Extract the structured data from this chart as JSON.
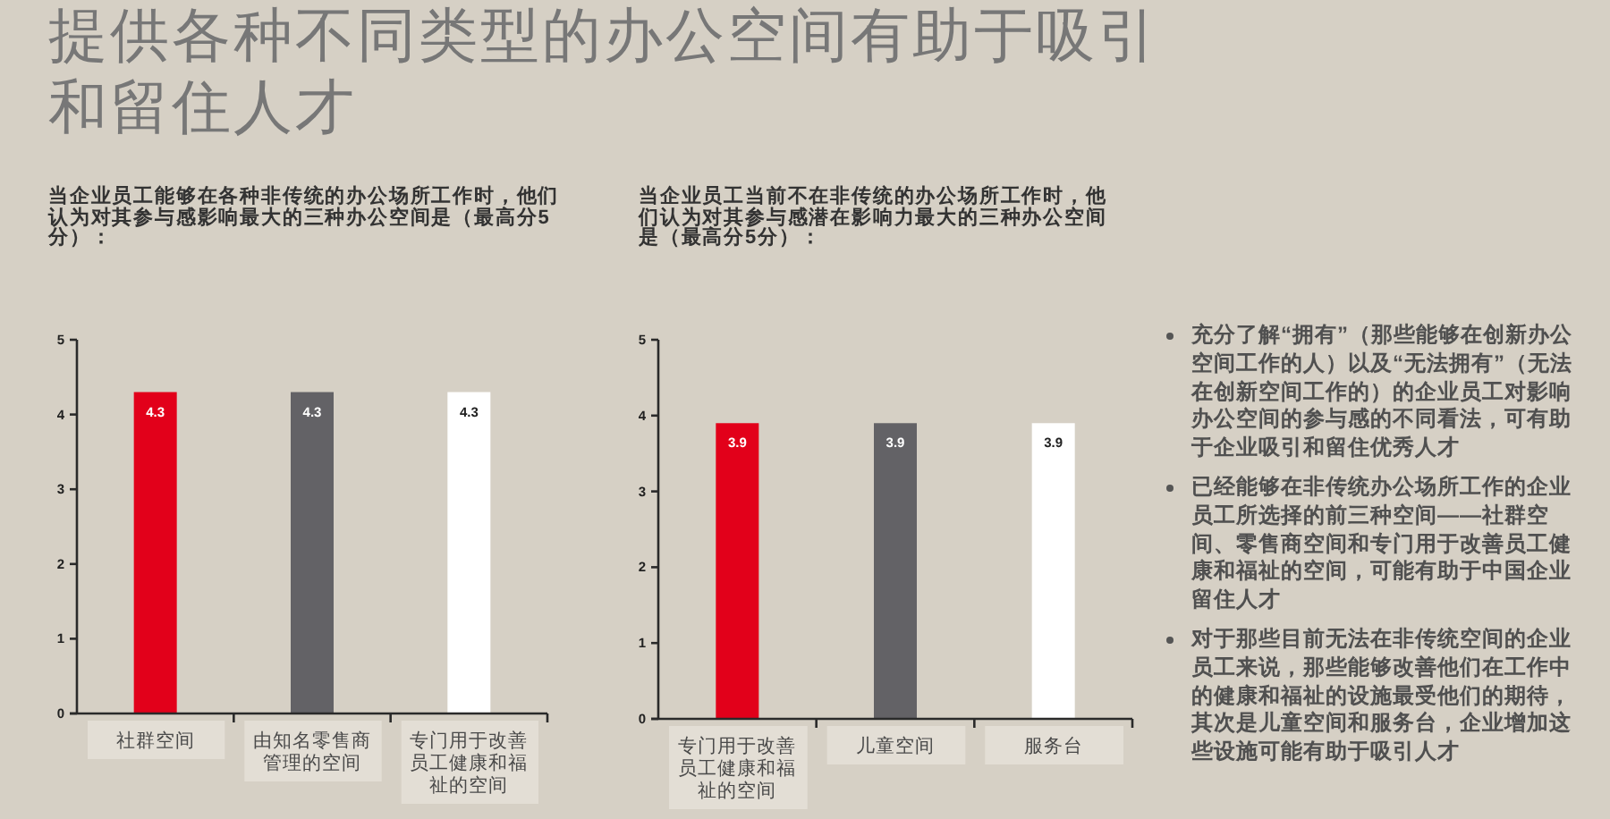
{
  "chart_data": [
    {
      "type": "other",
      "title": "提供各种不同类型的办公空间有助于吸引和留住人才"
    },
    {
      "type": "bar",
      "title": "当企业员工能够在各种非传统的办公场所工作时，他们认为对其参与感影响最大的三种办公空间是（最高分5分）：",
      "categories": [
        "社群空间",
        "由知名零售商管理的空间",
        "专门用于改善员工健康和福祉的空间"
      ],
      "values": [
        4.3,
        4.3,
        4.3
      ],
      "colors": [
        "#e2001a",
        "#636266",
        "#ffffff"
      ],
      "ylim": [
        0,
        5
      ],
      "yticks": [
        0,
        1,
        2,
        3,
        4,
        5
      ],
      "data_labels": true
    },
    {
      "type": "bar",
      "title": "当企业员工当前不在非传统的办公场所工作时，他们认为对其参与感潜在影响力最大的三种办公空间是（最高分5分）：",
      "categories": [
        "专门用于改善员工健康和福祉的空间",
        "儿童空间",
        "服务台"
      ],
      "values": [
        3.9,
        3.9,
        3.9
      ],
      "colors": [
        "#e2001a",
        "#636266",
        "#ffffff"
      ],
      "ylim": [
        0,
        5
      ],
      "yticks": [
        0,
        1,
        2,
        3,
        4,
        5
      ],
      "data_labels": true
    },
    {
      "type": "other",
      "annotations": [
        "充分了解“拥有”（那些能够在创新办公空间工作的人）以及“无法拥有”（无法在创新空间工作的）的企业员工对影响办公空间的参与感的不同看法，可有助于企业吸引和留住优秀人才",
        "已经能够在非传统办公场所工作的企业员工所选择的前三种空间——社群空间、零售商空间和专门用于改善员工健康和福祉的空间，可能有助于中国企业留住人才",
        "对于那些目前无法在非传统空间的企业员工来说，那些能够改善他们在工作中的健康和福祉的设施最受他们的期待，其次是儿童空间和服务台，企业增加这些设施可能有助于吸引人才"
      ]
    }
  ]
}
